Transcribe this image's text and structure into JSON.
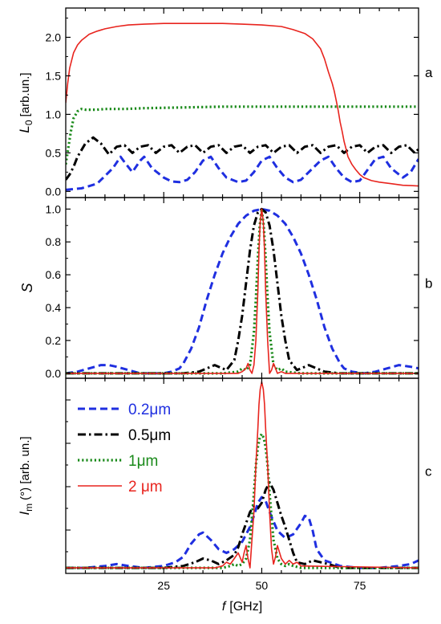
{
  "chart_data": [
    {
      "panel": "a",
      "type": "line",
      "ylabel": "L_0 [arb.un.]",
      "ylabel_main": "L",
      "ylabel_sub": "0",
      "ylabel_rest": "[arb.un.]",
      "xlim": [
        0,
        90
      ],
      "ylim": [
        -0.08,
        2.38
      ],
      "yticks": [
        0.0,
        0.5,
        1.0,
        1.5,
        2.0
      ],
      "ytick_labels": [
        "0.0",
        "0.5",
        "1.0",
        "1.5",
        "2.0"
      ],
      "series": [
        {
          "style": "dash",
          "color": "#1f2fe0",
          "x": [
            0,
            4,
            8,
            12,
            14,
            15,
            17,
            19,
            20,
            22,
            25,
            27,
            29,
            31,
            33,
            35,
            37,
            39,
            41,
            44,
            46,
            48,
            50,
            52,
            54,
            56,
            58,
            60,
            62,
            65,
            67,
            69,
            71,
            73,
            75,
            77,
            79,
            81,
            83,
            86,
            88,
            90
          ],
          "y": [
            0.02,
            0.04,
            0.1,
            0.3,
            0.45,
            0.38,
            0.25,
            0.4,
            0.45,
            0.3,
            0.18,
            0.13,
            0.12,
            0.15,
            0.25,
            0.4,
            0.45,
            0.3,
            0.18,
            0.12,
            0.14,
            0.25,
            0.4,
            0.45,
            0.3,
            0.18,
            0.12,
            0.15,
            0.25,
            0.4,
            0.45,
            0.3,
            0.18,
            0.12,
            0.14,
            0.28,
            0.42,
            0.45,
            0.3,
            0.18,
            0.25,
            0.42
          ]
        },
        {
          "style": "dashdot",
          "color": "#000000",
          "x": [
            0,
            1,
            2,
            3,
            5,
            7,
            9,
            11,
            13,
            15,
            17,
            19,
            21,
            23,
            25,
            27,
            29,
            31,
            33,
            35,
            37,
            39,
            41,
            43,
            45,
            47,
            49,
            51,
            53,
            55,
            57,
            59,
            61,
            63,
            65,
            67,
            69,
            71,
            73,
            75,
            77,
            79,
            81,
            83,
            85,
            87,
            89,
            90
          ],
          "y": [
            0.15,
            0.22,
            0.32,
            0.45,
            0.62,
            0.7,
            0.62,
            0.48,
            0.58,
            0.6,
            0.5,
            0.58,
            0.6,
            0.5,
            0.58,
            0.6,
            0.5,
            0.58,
            0.6,
            0.5,
            0.58,
            0.6,
            0.5,
            0.58,
            0.6,
            0.5,
            0.58,
            0.6,
            0.5,
            0.58,
            0.6,
            0.5,
            0.58,
            0.6,
            0.5,
            0.58,
            0.6,
            0.5,
            0.58,
            0.6,
            0.5,
            0.58,
            0.6,
            0.5,
            0.58,
            0.6,
            0.5,
            0.55
          ]
        },
        {
          "style": "dot",
          "color": "#1a8a1a",
          "x": [
            0,
            0.6,
            1.3,
            2,
            3,
            4,
            5,
            6,
            8,
            10,
            15,
            20,
            30,
            40,
            50,
            60,
            70,
            80,
            90
          ],
          "y": [
            0.35,
            0.55,
            0.78,
            0.95,
            1.04,
            1.07,
            1.06,
            1.06,
            1.06,
            1.07,
            1.07,
            1.08,
            1.09,
            1.1,
            1.1,
            1.1,
            1.1,
            1.1,
            1.1
          ]
        },
        {
          "style": "solid",
          "color": "#e8241e",
          "x": [
            0,
            0.5,
            1,
            2,
            3,
            4,
            5,
            6,
            8,
            10,
            13,
            16,
            20,
            25,
            30,
            35,
            40,
            45,
            50,
            55,
            58,
            61,
            63,
            65,
            66,
            67,
            68,
            68.5,
            69,
            69.5,
            70,
            70.5,
            71,
            71.5,
            72,
            73,
            74,
            75,
            76,
            78,
            80,
            83,
            86,
            88,
            90
          ],
          "y": [
            1.15,
            1.4,
            1.6,
            1.8,
            1.9,
            1.96,
            2.0,
            2.04,
            2.08,
            2.11,
            2.14,
            2.16,
            2.17,
            2.18,
            2.18,
            2.18,
            2.18,
            2.17,
            2.16,
            2.14,
            2.1,
            2.05,
            1.98,
            1.85,
            1.72,
            1.55,
            1.4,
            1.3,
            1.18,
            1.05,
            0.9,
            0.78,
            0.65,
            0.55,
            0.45,
            0.35,
            0.28,
            0.22,
            0.18,
            0.14,
            0.12,
            0.1,
            0.08,
            0.075,
            0.07
          ]
        }
      ],
      "annotation": "a"
    },
    {
      "panel": "b",
      "type": "line",
      "ylabel": "S",
      "xlim": [
        0,
        90
      ],
      "ylim": [
        -0.03,
        1.07
      ],
      "yticks": [
        0.0,
        0.2,
        0.4,
        0.6,
        0.8,
        1.0
      ],
      "ytick_labels": [
        "0.0",
        "0.2",
        "0.4",
        "0.6",
        "0.8",
        "1.0"
      ],
      "series": [
        {
          "style": "dash",
          "color": "#1f2fe0",
          "x": [
            0,
            3,
            6,
            9,
            11,
            13,
            16,
            19,
            22,
            25,
            27,
            29,
            30,
            32,
            34,
            36,
            38,
            40,
            42,
            44,
            46,
            48,
            50,
            52,
            54,
            56,
            58,
            60,
            62,
            64,
            66,
            68,
            70,
            71,
            73,
            76,
            79,
            82,
            85,
            88,
            90
          ],
          "y": [
            0.0,
            0.01,
            0.03,
            0.05,
            0.05,
            0.04,
            0.02,
            0.0,
            0.0,
            0.0,
            0.01,
            0.03,
            0.06,
            0.15,
            0.28,
            0.45,
            0.6,
            0.73,
            0.83,
            0.91,
            0.96,
            0.99,
            1.0,
            0.99,
            0.96,
            0.91,
            0.83,
            0.73,
            0.6,
            0.45,
            0.28,
            0.15,
            0.06,
            0.03,
            0.01,
            0.0,
            0.01,
            0.03,
            0.05,
            0.04,
            0.03
          ]
        },
        {
          "style": "dashdot",
          "color": "#000000",
          "x": [
            0,
            10,
            20,
            30,
            34,
            36,
            38,
            39,
            41,
            43,
            44,
            45,
            46,
            47,
            48,
            49,
            50,
            51,
            52,
            53,
            54,
            55,
            56,
            57,
            59,
            61,
            62,
            64,
            66,
            70,
            80,
            90
          ],
          "y": [
            0.0,
            0.0,
            0.0,
            0.0,
            0.01,
            0.03,
            0.05,
            0.04,
            0.02,
            0.08,
            0.2,
            0.35,
            0.55,
            0.75,
            0.9,
            0.98,
            1.0,
            0.98,
            0.9,
            0.75,
            0.55,
            0.35,
            0.2,
            0.08,
            0.02,
            0.04,
            0.05,
            0.03,
            0.01,
            0.0,
            0.0,
            0.0
          ]
        },
        {
          "style": "dot",
          "color": "#1a8a1a",
          "x": [
            0,
            20,
            40,
            44,
            45,
            46,
            47,
            48,
            48.5,
            49,
            49.5,
            50,
            50.5,
            51,
            51.5,
            52,
            53,
            54,
            55,
            56,
            60,
            90
          ],
          "y": [
            0.0,
            0.0,
            0.0,
            0.01,
            0.03,
            0.02,
            0.05,
            0.25,
            0.45,
            0.7,
            0.9,
            1.0,
            0.9,
            0.7,
            0.45,
            0.25,
            0.05,
            0.02,
            0.03,
            0.01,
            0.0,
            0.0
          ]
        },
        {
          "style": "solid",
          "color": "#e8241e",
          "x": [
            0,
            20,
            40,
            44,
            45,
            46,
            46.5,
            47,
            47.5,
            48,
            48.5,
            49,
            49.3,
            49.6,
            50,
            50.4,
            50.7,
            51,
            51.5,
            52,
            52.5,
            53,
            53.5,
            54,
            55,
            56,
            60,
            90
          ],
          "y": [
            0.0,
            0.0,
            0.0,
            0.0,
            0.01,
            0.03,
            0.06,
            0.02,
            0.0,
            0.05,
            0.2,
            0.5,
            0.75,
            0.92,
            1.0,
            0.92,
            0.75,
            0.5,
            0.2,
            0.0,
            0.02,
            0.06,
            0.03,
            0.0,
            0.01,
            0.0,
            0.0,
            0.0
          ]
        }
      ],
      "annotation": "b"
    },
    {
      "panel": "c",
      "type": "line",
      "ylabel": "I_m(°) [arb. un.]",
      "ylabel_main": "I",
      "ylabel_sub": "m",
      "ylabel_rest": "(°) [arb. un.]",
      "xlabel": "f [GHz]",
      "xlabel_main": "f",
      "xlabel_rest": "[GHz]",
      "xlim": [
        0,
        90
      ],
      "xticks": [
        25,
        50,
        75
      ],
      "xtick_labels": [
        "25",
        "50",
        "75"
      ],
      "ylim": [
        -0.03,
        1.02
      ],
      "series": [
        {
          "style": "dash",
          "color": "#1f2fe0",
          "name": "0.2μm",
          "x": [
            0,
            5,
            10,
            13,
            16,
            20,
            25,
            28,
            30,
            32,
            34,
            35,
            37,
            39,
            41,
            43,
            45,
            46,
            47,
            48,
            49,
            50,
            51,
            52,
            53,
            54,
            55,
            56,
            58,
            60,
            61,
            62,
            63,
            64,
            66,
            70,
            75,
            80,
            85,
            88,
            90
          ],
          "y": [
            0.0,
            0.0,
            0.01,
            0.02,
            0.01,
            0.0,
            0.01,
            0.03,
            0.06,
            0.13,
            0.18,
            0.19,
            0.15,
            0.1,
            0.08,
            0.1,
            0.14,
            0.18,
            0.22,
            0.28,
            0.35,
            0.38,
            0.36,
            0.3,
            0.25,
            0.2,
            0.18,
            0.16,
            0.18,
            0.24,
            0.28,
            0.27,
            0.2,
            0.1,
            0.04,
            0.01,
            0.0,
            0.0,
            0.01,
            0.02,
            0.04
          ]
        },
        {
          "style": "dashdot",
          "color": "#000000",
          "name": "0.5μm",
          "x": [
            0,
            10,
            20,
            25,
            30,
            33,
            35,
            37,
            39,
            41,
            43,
            44,
            45,
            46,
            47,
            48,
            49,
            50,
            51,
            52,
            53,
            54,
            55,
            56,
            57,
            58,
            59,
            61,
            63,
            65,
            67,
            70,
            75,
            80,
            90
          ],
          "y": [
            0.0,
            0.0,
            0.0,
            0.0,
            0.01,
            0.03,
            0.05,
            0.04,
            0.02,
            0.04,
            0.07,
            0.11,
            0.18,
            0.24,
            0.3,
            0.33,
            0.32,
            0.35,
            0.42,
            0.46,
            0.42,
            0.35,
            0.28,
            0.22,
            0.15,
            0.08,
            0.03,
            0.02,
            0.04,
            0.03,
            0.02,
            0.0,
            0.0,
            0.0,
            0.0
          ]
        },
        {
          "style": "dot",
          "color": "#1a8a1a",
          "name": "1μm",
          "x": [
            0,
            20,
            40,
            42,
            43,
            44,
            45,
            46,
            47,
            48,
            48.5,
            49,
            49.5,
            50,
            50.5,
            51,
            51.5,
            52,
            53,
            54,
            55,
            56,
            57,
            58,
            60,
            90
          ],
          "y": [
            0.0,
            0.0,
            0.0,
            0.01,
            0.02,
            0.01,
            0.02,
            0.05,
            0.15,
            0.4,
            0.55,
            0.65,
            0.7,
            0.72,
            0.7,
            0.65,
            0.55,
            0.4,
            0.15,
            0.05,
            0.02,
            0.01,
            0.02,
            0.01,
            0.0,
            0.0
          ]
        },
        {
          "style": "solid",
          "color": "#e8241e",
          "name": "2 μm",
          "x": [
            0,
            20,
            38,
            40,
            41,
            42,
            43,
            44,
            45,
            45.5,
            46,
            46.5,
            47,
            47.5,
            48,
            48.5,
            49,
            49.3,
            49.6,
            50,
            50.4,
            50.7,
            51,
            51.5,
            52,
            52.5,
            53,
            53.5,
            54,
            55,
            56,
            57,
            58,
            59,
            60,
            90
          ],
          "y": [
            0.0,
            0.0,
            0.0,
            0.01,
            0.03,
            0.02,
            0.05,
            0.08,
            0.03,
            0.08,
            0.12,
            0.05,
            0.0,
            0.15,
            0.3,
            0.55,
            0.75,
            0.88,
            0.96,
            1.0,
            0.96,
            0.88,
            0.75,
            0.55,
            0.3,
            0.1,
            0.02,
            0.06,
            0.12,
            0.05,
            0.02,
            0.04,
            0.02,
            0.03,
            0.01,
            0.0
          ]
        }
      ],
      "annotation": "c"
    }
  ]
}
